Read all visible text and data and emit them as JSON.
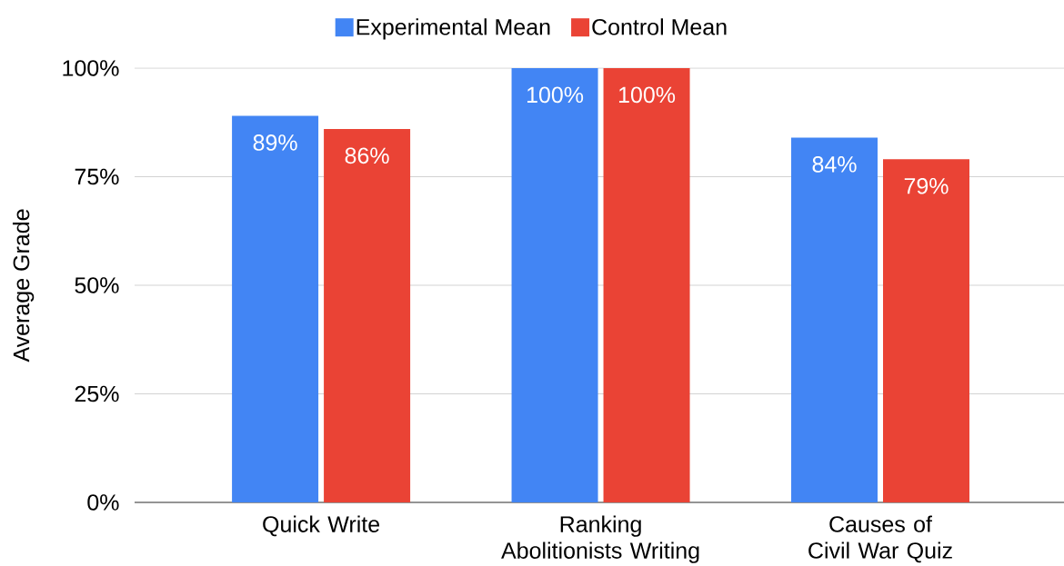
{
  "chart_data": {
    "type": "bar",
    "ylabel": "Average Grade",
    "categories": [
      "Quick Write",
      "Ranking Abolitionists Writing",
      "Causes of Civil War Quiz"
    ],
    "series": [
      {
        "name": "Experimental Mean",
        "color": "#4285f4",
        "values": [
          89,
          100,
          84
        ],
        "value_labels": [
          "89%",
          "100%",
          "84%"
        ]
      },
      {
        "name": "Control Mean",
        "color": "#ea4335",
        "values": [
          86,
          100,
          79
        ],
        "value_labels": [
          "86%",
          "100%",
          "79%"
        ]
      }
    ],
    "ylim": [
      0,
      100
    ],
    "yticks": [
      {
        "value": 0,
        "label": "0%"
      },
      {
        "value": 25,
        "label": "25%"
      },
      {
        "value": 50,
        "label": "50%"
      },
      {
        "value": 75,
        "label": "75%"
      },
      {
        "value": 100,
        "label": "100%"
      }
    ],
    "grid": "y",
    "legend": "top"
  }
}
